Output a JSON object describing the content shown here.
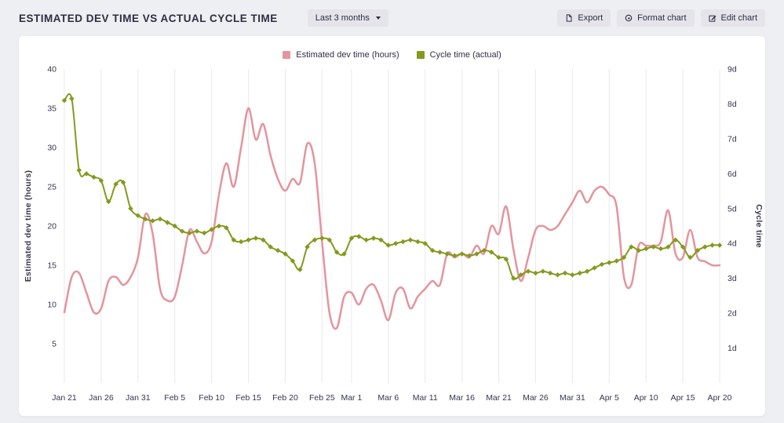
{
  "header": {
    "title": "ESTIMATED DEV TIME VS ACTUAL CYCLE TIME",
    "range_dropdown": {
      "value": "Last 3 months"
    },
    "buttons": [
      {
        "label": "Export"
      },
      {
        "label": "Format chart"
      },
      {
        "label": "Edit chart"
      }
    ]
  },
  "colors": {
    "background": "#edeff2",
    "card": "#ffffff",
    "grid": "#e9e9ee",
    "text": "#2d2d44",
    "estimated_series": "#e4949d",
    "cycle_series": "#85991e"
  },
  "chart_data": {
    "type": "line",
    "title": "ESTIMATED DEV TIME VS ACTUAL CYCLE TIME",
    "grid": "vertical",
    "legend_position": "top",
    "x_start": "Jan 21",
    "x_interval_days": 1,
    "left_axis": {
      "label": "Estimated dev time (hours)",
      "min": 0,
      "max": 40,
      "ticks": [
        5,
        10,
        15,
        20,
        25,
        30,
        35,
        40
      ]
    },
    "right_axis": {
      "label": "Cycle time",
      "min": 0,
      "max": 9,
      "ticks": [
        1,
        2,
        3,
        4,
        5,
        6,
        7,
        8,
        9
      ],
      "suffix": "d"
    },
    "x_ticks": [
      {
        "label": "Jan 21",
        "index": 0
      },
      {
        "label": "Jan 26",
        "index": 5
      },
      {
        "label": "Jan 31",
        "index": 10
      },
      {
        "label": "Feb 5",
        "index": 15
      },
      {
        "label": "Feb 10",
        "index": 20
      },
      {
        "label": "Feb 15",
        "index": 25
      },
      {
        "label": "Feb 20",
        "index": 30
      },
      {
        "label": "Feb 25",
        "index": 35
      },
      {
        "label": "Mar 1",
        "index": 39
      },
      {
        "label": "Mar 6",
        "index": 44
      },
      {
        "label": "Mar 11",
        "index": 49
      },
      {
        "label": "Mar 16",
        "index": 54
      },
      {
        "label": "Mar 21",
        "index": 59
      },
      {
        "label": "Mar 26",
        "index": 64
      },
      {
        "label": "Mar 31",
        "index": 69
      },
      {
        "label": "Apr 5",
        "index": 74
      },
      {
        "label": "Apr 10",
        "index": 79
      },
      {
        "label": "Apr 15",
        "index": 84
      },
      {
        "label": "Apr 20",
        "index": 89
      }
    ],
    "series": [
      {
        "name": "Estimated dev time (hours)",
        "axis": "left",
        "color": "#e4949d",
        "markers": false,
        "values": [
          9,
          13.5,
          14,
          11.5,
          9,
          9.5,
          13,
          13.5,
          12.5,
          13.5,
          16,
          21.5,
          19,
          12,
          10.5,
          11,
          15,
          19.5,
          18,
          16.5,
          18,
          24,
          28,
          25,
          30,
          35,
          31,
          33,
          29,
          26,
          24.5,
          26,
          25.5,
          30.5,
          28,
          18,
          9,
          7,
          11,
          11.5,
          10,
          12,
          12.5,
          10.5,
          8,
          11.5,
          12,
          9.5,
          11,
          12,
          13,
          12.5,
          16.5,
          16,
          16.5,
          16,
          17.5,
          16.5,
          20,
          19,
          22.5,
          17,
          13,
          16,
          19.5,
          20,
          19.5,
          20,
          21.5,
          23,
          24.5,
          23,
          24.5,
          25,
          24,
          22.5,
          13.5,
          12.5,
          17.5,
          17.5,
          17.5,
          18,
          22,
          16.5,
          16,
          19.5,
          16,
          15.5,
          15,
          15
        ]
      },
      {
        "name": "Cycle time (actual)",
        "axis": "right",
        "color": "#85991e",
        "markers": true,
        "values": [
          8.1,
          8.15,
          6.1,
          6,
          5.9,
          5.8,
          5.2,
          5.7,
          5.75,
          5,
          4.8,
          4.7,
          4.65,
          4.7,
          4.6,
          4.5,
          4.35,
          4.3,
          4.35,
          4.3,
          4.4,
          4.5,
          4.45,
          4.1,
          4.05,
          4.1,
          4.15,
          4.1,
          3.9,
          3.8,
          3.7,
          3.5,
          3.25,
          3.9,
          4.1,
          4.15,
          4.1,
          3.75,
          3.7,
          4.15,
          4.2,
          4.1,
          4.15,
          4.1,
          3.95,
          4,
          4.05,
          4.1,
          4.05,
          4,
          3.8,
          3.75,
          3.7,
          3.65,
          3.7,
          3.65,
          3.7,
          3.8,
          3.75,
          3.6,
          3.55,
          3,
          3.1,
          3.2,
          3.15,
          3.2,
          3.15,
          3.1,
          3.15,
          3.1,
          3.15,
          3.2,
          3.3,
          3.4,
          3.45,
          3.5,
          3.6,
          3.9,
          3.8,
          3.85,
          3.9,
          3.85,
          3.9,
          4.1,
          3.9,
          3.6,
          3.8,
          3.9,
          3.95,
          3.95
        ]
      }
    ]
  }
}
